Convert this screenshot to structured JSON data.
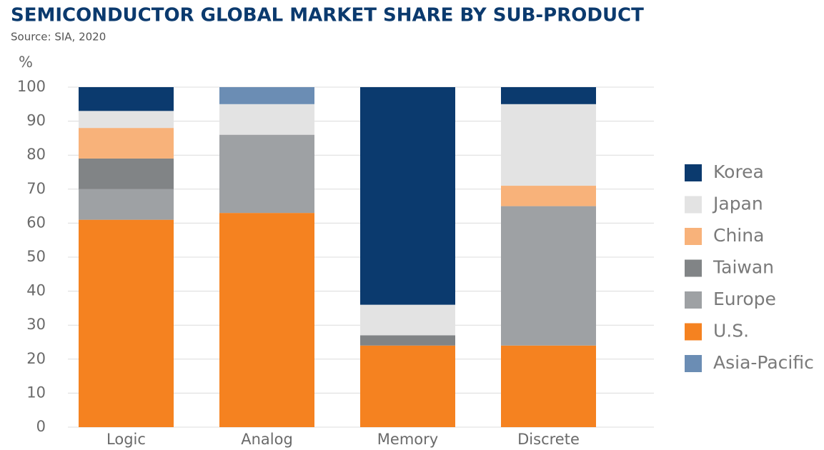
{
  "chart_data": {
    "type": "stacked_bar",
    "title": "SEMICONDUCTOR GLOBAL MARKET SHARE BY SUB-PRODUCT",
    "subtitle": "Source: SIA, 2020",
    "y_label": "%",
    "categories": [
      "Logic",
      "Analog",
      "Memory",
      "Discrete"
    ],
    "series": [
      {
        "name": "Korea",
        "color": "#0b3a6e",
        "values": [
          7,
          0,
          64,
          5
        ]
      },
      {
        "name": "Japan",
        "color": "#e3e3e3",
        "values": [
          5,
          9,
          9,
          24
        ]
      },
      {
        "name": "China",
        "color": "#f8b27a",
        "values": [
          9,
          0,
          0,
          6
        ]
      },
      {
        "name": "Taiwan",
        "color": "#818486",
        "values": [
          9,
          0,
          3,
          0
        ]
      },
      {
        "name": "Europe",
        "color": "#9ea1a4",
        "values": [
          9,
          23,
          0,
          41
        ]
      },
      {
        "name": "U.S.",
        "color": "#f58220",
        "values": [
          61,
          63,
          24,
          24
        ]
      },
      {
        "name": "Asia-Pacific",
        "color": "#6b8db4",
        "values": [
          0,
          5,
          0,
          0
        ]
      }
    ],
    "ylim": [
      0,
      100
    ],
    "yticks": [
      0,
      10,
      20,
      30,
      40,
      50,
      60,
      70,
      80,
      90,
      100
    ],
    "grid": true,
    "legend": "right"
  }
}
